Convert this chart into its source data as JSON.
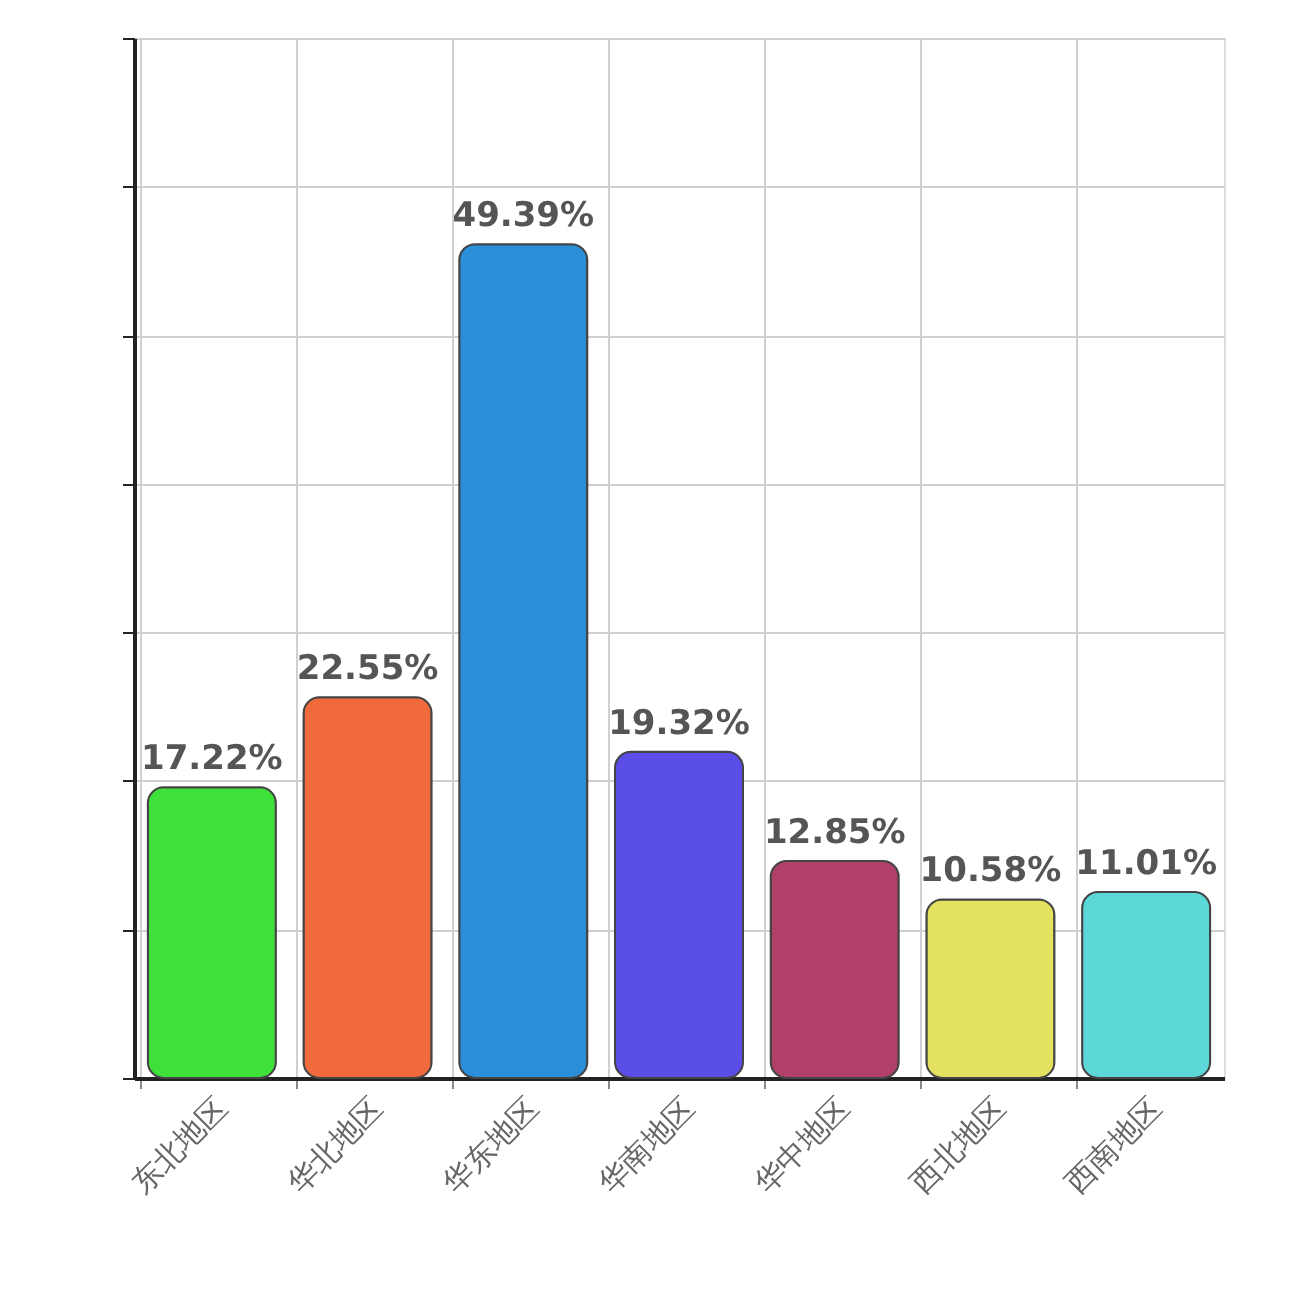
{
  "chart_data": {
    "type": "bar",
    "categories": [
      "东北地区",
      "华北地区",
      "华东地区",
      "华南地区",
      "华中地区",
      "西北地区",
      "西南地区"
    ],
    "values": [
      17.22,
      22.55,
      49.39,
      19.32,
      12.85,
      10.58,
      11.01
    ],
    "colors": [
      "#3ee03a",
      "#f06a3c",
      "#2a8fd8",
      "#5a4de8",
      "#b0406a",
      "#e4e060",
      "#5cd8d8"
    ],
    "value_labels": [
      "17.22%",
      "22.55%",
      "49.39%",
      "19.32%",
      "12.85%",
      "10.58%",
      "11.01%"
    ],
    "ylim": [
      0,
      61.6
    ],
    "yticks": [
      {
        "value": 0,
        "label": null
      },
      {
        "value": 8.8,
        "label": null
      },
      {
        "value": 17.6,
        "label": null
      },
      {
        "value": 26.4,
        "label": null
      },
      {
        "value": 35.2,
        "label": null
      },
      {
        "value": 44,
        "label": null
      },
      {
        "value": 52.8,
        "label": null
      },
      {
        "value": 61.6,
        "label": null
      }
    ],
    "grid": true,
    "tick_labels": "x"
  }
}
